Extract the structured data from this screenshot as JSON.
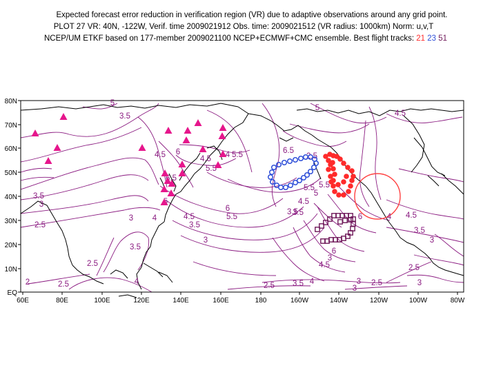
{
  "header": {
    "line1": "Expected forecast error reduction in verification region (VR) due to adaptive observations around any grid point.",
    "line2": "PLOT 27 VR: 40N, -122W, Verif. time 2009021912 Obs. time: 2009021512 (VR radius: 1000km) Norm: u,v,T",
    "line3_prefix": "NCEP/UM ETKF based on 177-member 2009021100 NCEP+ECMWF+CMC ensemble. Best flight tracks:",
    "tracks": [
      "21",
      "23",
      "51"
    ]
  },
  "map": {
    "lon_labels": [
      "60E",
      "80E",
      "100E",
      "120E",
      "140E",
      "160E",
      "180",
      "160W",
      "140W",
      "120W",
      "100W",
      "80W"
    ],
    "lat_labels": [
      "EQ",
      "10N",
      "20N",
      "30N",
      "40N",
      "50N",
      "60N",
      "70N",
      "80N"
    ],
    "contour_labels": [
      "3.5",
      "5",
      "4.5",
      "6",
      "6.5",
      "5.5",
      "4.5",
      "4",
      "5.5",
      "6.5",
      "3.5",
      "3",
      "2.5",
      "3",
      "3.5",
      "5",
      "3.5",
      "4.5",
      "3.5",
      "6",
      "5.5",
      "4.5",
      "5",
      "5.5",
      "6",
      "4",
      "3",
      "4.5",
      "3.5",
      "3",
      "2.5",
      "2.5",
      "2",
      "2.5",
      "4",
      "2.5",
      "3",
      "2.5",
      "3",
      "4",
      "4.5",
      "5",
      "2.5",
      "3.5",
      "3",
      "4",
      "4.5",
      "6",
      "3",
      "3.5",
      "5.5"
    ],
    "colors": {
      "contour": "#8a1a80",
      "coast": "#000000",
      "track21": "#ff2a2a",
      "track23": "#2f4fd8",
      "track51": "#6f1a5a",
      "triangles": "#e6168c",
      "verification_circle": "#ff4040"
    },
    "verification_region": {
      "lat": 40,
      "lon": -122,
      "radius_km": 1000
    }
  }
}
